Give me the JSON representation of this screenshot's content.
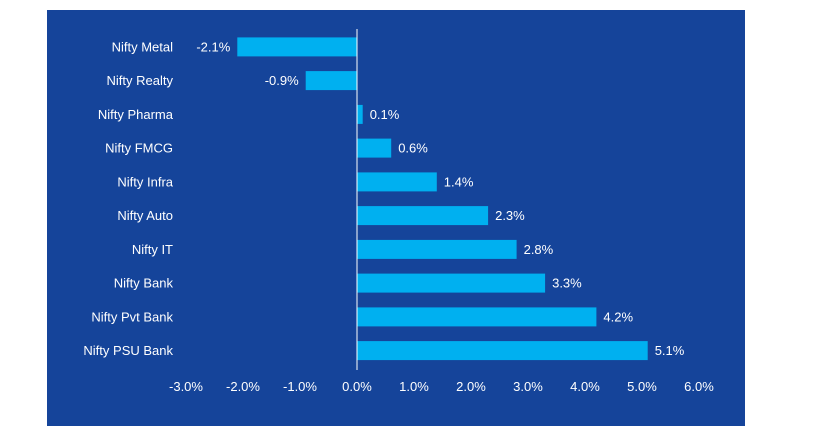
{
  "colors": {
    "background": "#15449a",
    "bar": "#00b0f0",
    "axis": "#ffffff",
    "text": "#ffffff"
  },
  "chart_data": {
    "type": "bar",
    "orientation": "horizontal",
    "categories": [
      "Nifty Metal",
      "Nifty Realty",
      "Nifty Pharma",
      "Nifty FMCG",
      "Nifty Infra",
      "Nifty Auto",
      "Nifty IT",
      "Nifty Bank",
      "Nifty Pvt Bank",
      "Nifty PSU Bank"
    ],
    "values": [
      -2.1,
      -0.9,
      0.1,
      0.6,
      1.4,
      2.3,
      2.8,
      3.3,
      4.2,
      5.1
    ],
    "value_labels": [
      "-2.1%",
      "-0.9%",
      "0.1%",
      "0.6%",
      "1.4%",
      "2.3%",
      "2.8%",
      "3.3%",
      "4.2%",
      "5.1%"
    ],
    "xlim": [
      -3.0,
      6.0
    ],
    "x_ticks": [
      -3.0,
      -2.0,
      -1.0,
      0.0,
      1.0,
      2.0,
      3.0,
      4.0,
      5.0,
      6.0
    ],
    "x_tick_labels": [
      "-3.0%",
      "-2.0%",
      "-1.0%",
      "0.0%",
      "1.0%",
      "2.0%",
      "3.0%",
      "4.0%",
      "5.0%",
      "6.0%"
    ],
    "title": "",
    "xlabel": "",
    "ylabel": "",
    "grid": false,
    "legend": "none"
  }
}
